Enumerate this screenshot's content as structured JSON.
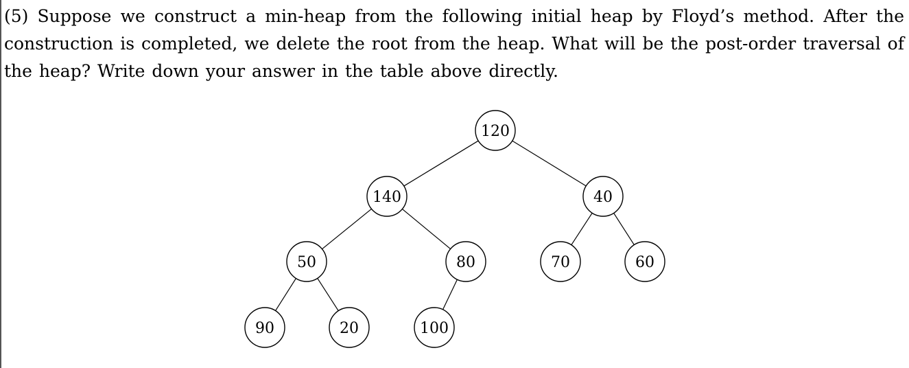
{
  "question": {
    "text": "(5) Suppose we construct a min-heap from the following initial heap by Floyd’s method. After the construction is completed, we delete the root from the heap. What will be the post-order traversal of the heap? Write down your answer in the table above directly."
  },
  "tree": {
    "nodes": [
      {
        "id": "n120",
        "label": "120"
      },
      {
        "id": "n140",
        "label": "140"
      },
      {
        "id": "n40",
        "label": "40"
      },
      {
        "id": "n50",
        "label": "50"
      },
      {
        "id": "n80",
        "label": "80"
      },
      {
        "id": "n70",
        "label": "70"
      },
      {
        "id": "n60",
        "label": "60"
      },
      {
        "id": "n90",
        "label": "90"
      },
      {
        "id": "n20",
        "label": "20"
      },
      {
        "id": "n100",
        "label": "100"
      }
    ],
    "edges": [
      [
        "n120",
        "n140"
      ],
      [
        "n120",
        "n40"
      ],
      [
        "n140",
        "n50"
      ],
      [
        "n140",
        "n80"
      ],
      [
        "n40",
        "n70"
      ],
      [
        "n40",
        "n60"
      ],
      [
        "n50",
        "n90"
      ],
      [
        "n50",
        "n20"
      ],
      [
        "n80",
        "n100"
      ]
    ]
  }
}
